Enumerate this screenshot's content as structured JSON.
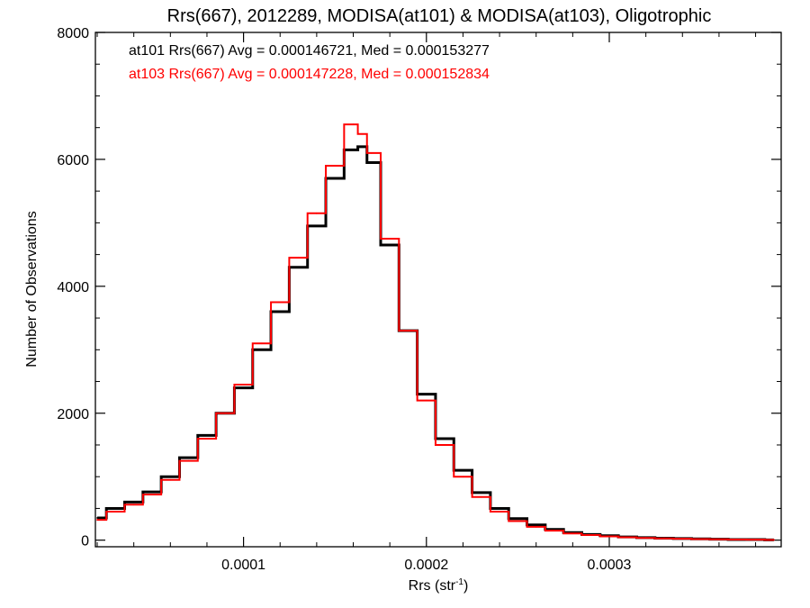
{
  "chart_data": {
    "type": "line",
    "title": "Rrs(667), 2012289, MODISA(at101) & MODISA(at103), Oligotrophic",
    "xlabel": "Rrs (str",
    "xlabel_sup": "-1",
    "xlabel_end": ")",
    "ylabel": "Number of Observations",
    "xlim": [
      1.9e-05,
      0.000394
    ],
    "ylim": [
      0,
      8000
    ],
    "x_ticks": [
      {
        "value": 0.0001,
        "label": "0.0001"
      },
      {
        "value": 0.0002,
        "label": "0.0002"
      },
      {
        "value": 0.0003,
        "label": "0.0003"
      }
    ],
    "y_ticks": [
      {
        "value": 0,
        "label": "0"
      },
      {
        "value": 2000,
        "label": "2000"
      },
      {
        "value": 4000,
        "label": "4000"
      },
      {
        "value": 6000,
        "label": "6000"
      },
      {
        "value": 8000,
        "label": "8000"
      }
    ],
    "legend_placement": "top-left",
    "series": [
      {
        "name": "at101 Rrs(667) Avg = 0.000146721, Med = 0.000153277",
        "color": "#000000",
        "x": [
          2e-05,
          3e-05,
          4e-05,
          5e-05,
          6e-05,
          7e-05,
          8e-05,
          9e-05,
          0.0001,
          0.00011,
          0.00012,
          0.00013,
          0.00014,
          0.00015,
          0.00016,
          0.000165,
          0.00017,
          0.00018,
          0.00019,
          0.0002,
          0.00021,
          0.00022,
          0.00023,
          0.00024,
          0.00025,
          0.00026,
          0.00027,
          0.00028,
          0.00029,
          0.0003,
          0.00031,
          0.00032,
          0.00033,
          0.00034,
          0.00035,
          0.00036,
          0.00037,
          0.00038,
          0.00039
        ],
        "y": [
          350,
          500,
          600,
          760,
          1000,
          1300,
          1650,
          2000,
          2400,
          3000,
          3600,
          4300,
          4950,
          5700,
          6150,
          6200,
          5950,
          4650,
          3300,
          2300,
          1600,
          1100,
          750,
          500,
          340,
          240,
          170,
          120,
          90,
          70,
          50,
          40,
          30,
          25,
          20,
          15,
          10,
          10,
          5
        ]
      },
      {
        "name": "at103 Rrs(667) Avg = 0.000147228, Med = 0.000152834",
        "color": "#ff0000",
        "x": [
          2e-05,
          3e-05,
          4e-05,
          5e-05,
          6e-05,
          7e-05,
          8e-05,
          9e-05,
          0.0001,
          0.00011,
          0.00012,
          0.00013,
          0.00014,
          0.00015,
          0.00016,
          0.000165,
          0.00017,
          0.00018,
          0.00019,
          0.0002,
          0.00021,
          0.00022,
          0.00023,
          0.00024,
          0.00025,
          0.00026,
          0.00027,
          0.00028,
          0.00029,
          0.0003,
          0.00031,
          0.00032,
          0.00033,
          0.00034,
          0.00035,
          0.00036,
          0.00037,
          0.00038,
          0.00039
        ],
        "y": [
          320,
          450,
          560,
          720,
          950,
          1250,
          1600,
          2000,
          2450,
          3100,
          3750,
          4450,
          5150,
          5900,
          6550,
          6400,
          6100,
          4750,
          3300,
          2200,
          1500,
          1000,
          680,
          450,
          300,
          210,
          150,
          105,
          80,
          60,
          45,
          35,
          28,
          22,
          17,
          13,
          9,
          8,
          5
        ]
      }
    ]
  }
}
